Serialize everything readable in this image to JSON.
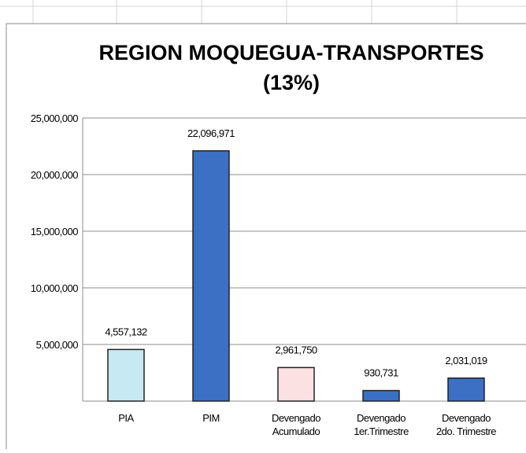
{
  "chart_data": {
    "type": "bar",
    "title_lines": [
      "REGION MOQUEGUA-TRANSPORTES",
      "(13%)"
    ],
    "categories": [
      "PIA",
      "PIM",
      "Devengado\nAcumulado",
      "Devengado\n1er.Trimestre",
      "Devengado\n2do. Trimestre"
    ],
    "values": [
      4557132,
      22096971,
      2961750,
      930731,
      2031019
    ],
    "value_labels": [
      "4,557,132",
      "22,096,971",
      "2,961,750",
      "930,731",
      "2,031,019"
    ],
    "colors": [
      "#c6e9f3",
      "#3b70c4",
      "#fbe1e1",
      "#3b70c4",
      "#3b70c4"
    ],
    "ylim": [
      0,
      25000000
    ],
    "yticks": [
      {
        "value": 5000000,
        "label": "5,000,000"
      },
      {
        "value": 10000000,
        "label": "10,000,000"
      },
      {
        "value": 15000000,
        "label": "15,000,000"
      },
      {
        "value": 20000000,
        "label": "20,000,000"
      },
      {
        "value": 25000000,
        "label": "25,000,000"
      }
    ],
    "grid": true
  }
}
